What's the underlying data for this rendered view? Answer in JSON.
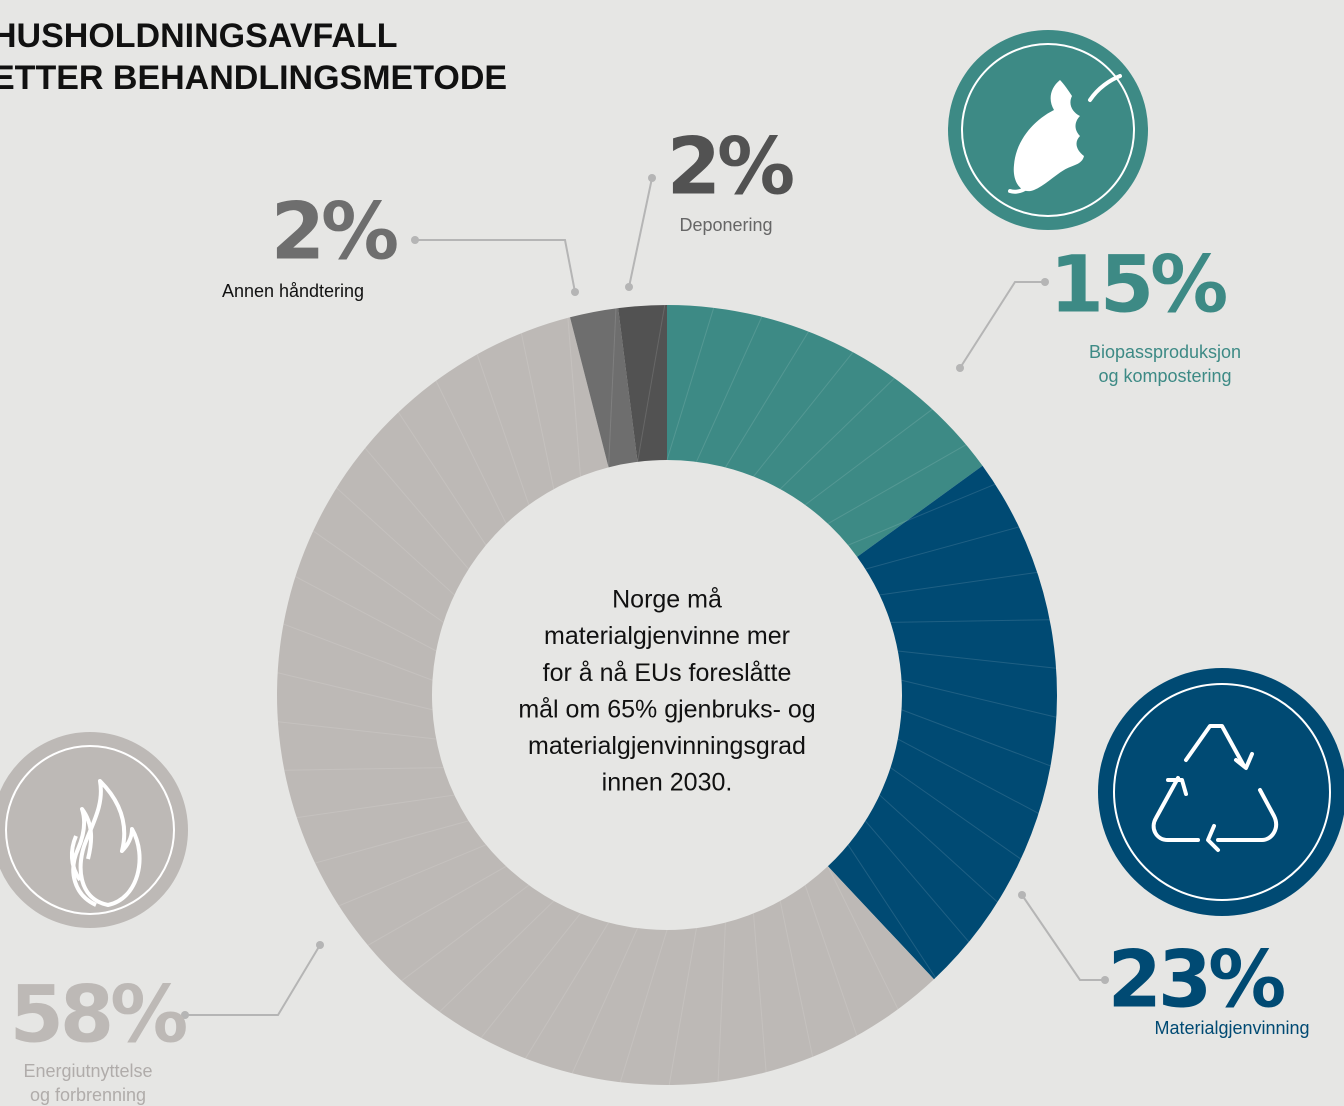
{
  "chart_data": {
    "type": "donut",
    "title": [
      "HUSHOLDNINGSAVFALL",
      "ETTER BEHANDLINGSMETODE"
    ],
    "center_text": [
      "Norge må",
      "materialgjenvinne mer",
      "for å nå EUs foreslåtte",
      "mål om 65% gjenbruks- og",
      "materialgjenvinningsgrad",
      "innen 2030."
    ],
    "categories": [
      [
        "Biopassproduksjon",
        "og kompostering"
      ],
      [
        "Materialgjenvinning"
      ],
      [
        "Energiutnyttelse",
        "og forbrenning"
      ],
      [
        "Annen håndtering"
      ],
      [
        "Deponering"
      ]
    ],
    "values": [
      15,
      23,
      58,
      2,
      2
    ],
    "value_labels": [
      "15%",
      "23%",
      "58%",
      "2%",
      "2%"
    ],
    "colors": [
      "#3d8a85",
      "#004a73",
      "#bdb9b6",
      "#6e6e6e",
      "#525252"
    ]
  }
}
